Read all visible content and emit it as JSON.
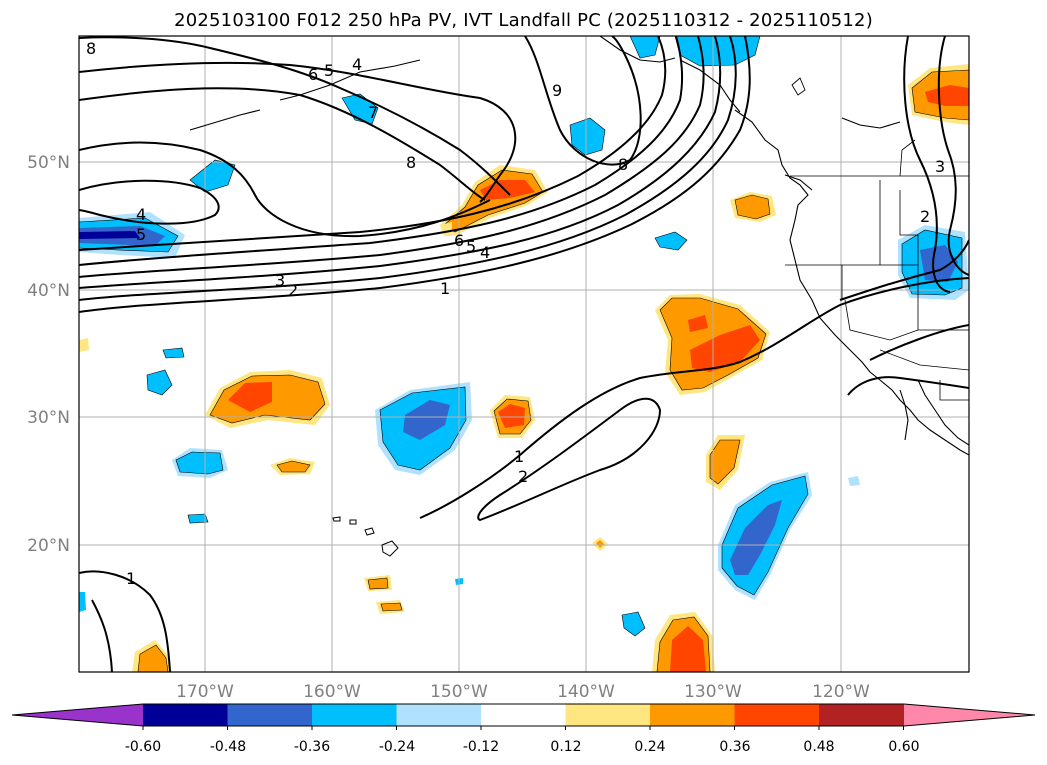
{
  "title": "2025103100 F012 250 hPa PV, IVT Landfall PC (2025110312 - 2025110512)",
  "lat_labels": [
    "50°N",
    "40°N",
    "30°N",
    "20°N"
  ],
  "lon_labels": [
    "170°W",
    "160°W",
    "150°W",
    "140°W",
    "130°W",
    "120°W"
  ],
  "colorbar": {
    "levels": [
      "-0.60",
      "-0.48",
      "-0.36",
      "-0.24",
      "-0.12",
      "0.12",
      "0.24",
      "0.36",
      "0.48",
      "0.60"
    ],
    "colors": [
      "#9933cc",
      "#000099",
      "#3366cc",
      "#00bfff",
      "#b0e2ff",
      "#ffffff",
      "#ffe680",
      "#ff9900",
      "#ff4500",
      "#b22222",
      "#ff88aa"
    ]
  },
  "contour_labels": [
    "8",
    "6",
    "5",
    "4",
    "7",
    "9",
    "8",
    "8",
    "4",
    "5",
    "6",
    "5",
    "4",
    "3",
    "2",
    "1",
    "1",
    "2",
    "1",
    "3",
    "2"
  ],
  "fill_colors": {
    "neg_light": "#b0e2ff",
    "neg_mid": "#00bfff",
    "neg_strong": "#3366cc",
    "neg_max": "#000099",
    "pos_light": "#ffe680",
    "pos_mid": "#ff9900",
    "pos_strong": "#ff4500"
  }
}
